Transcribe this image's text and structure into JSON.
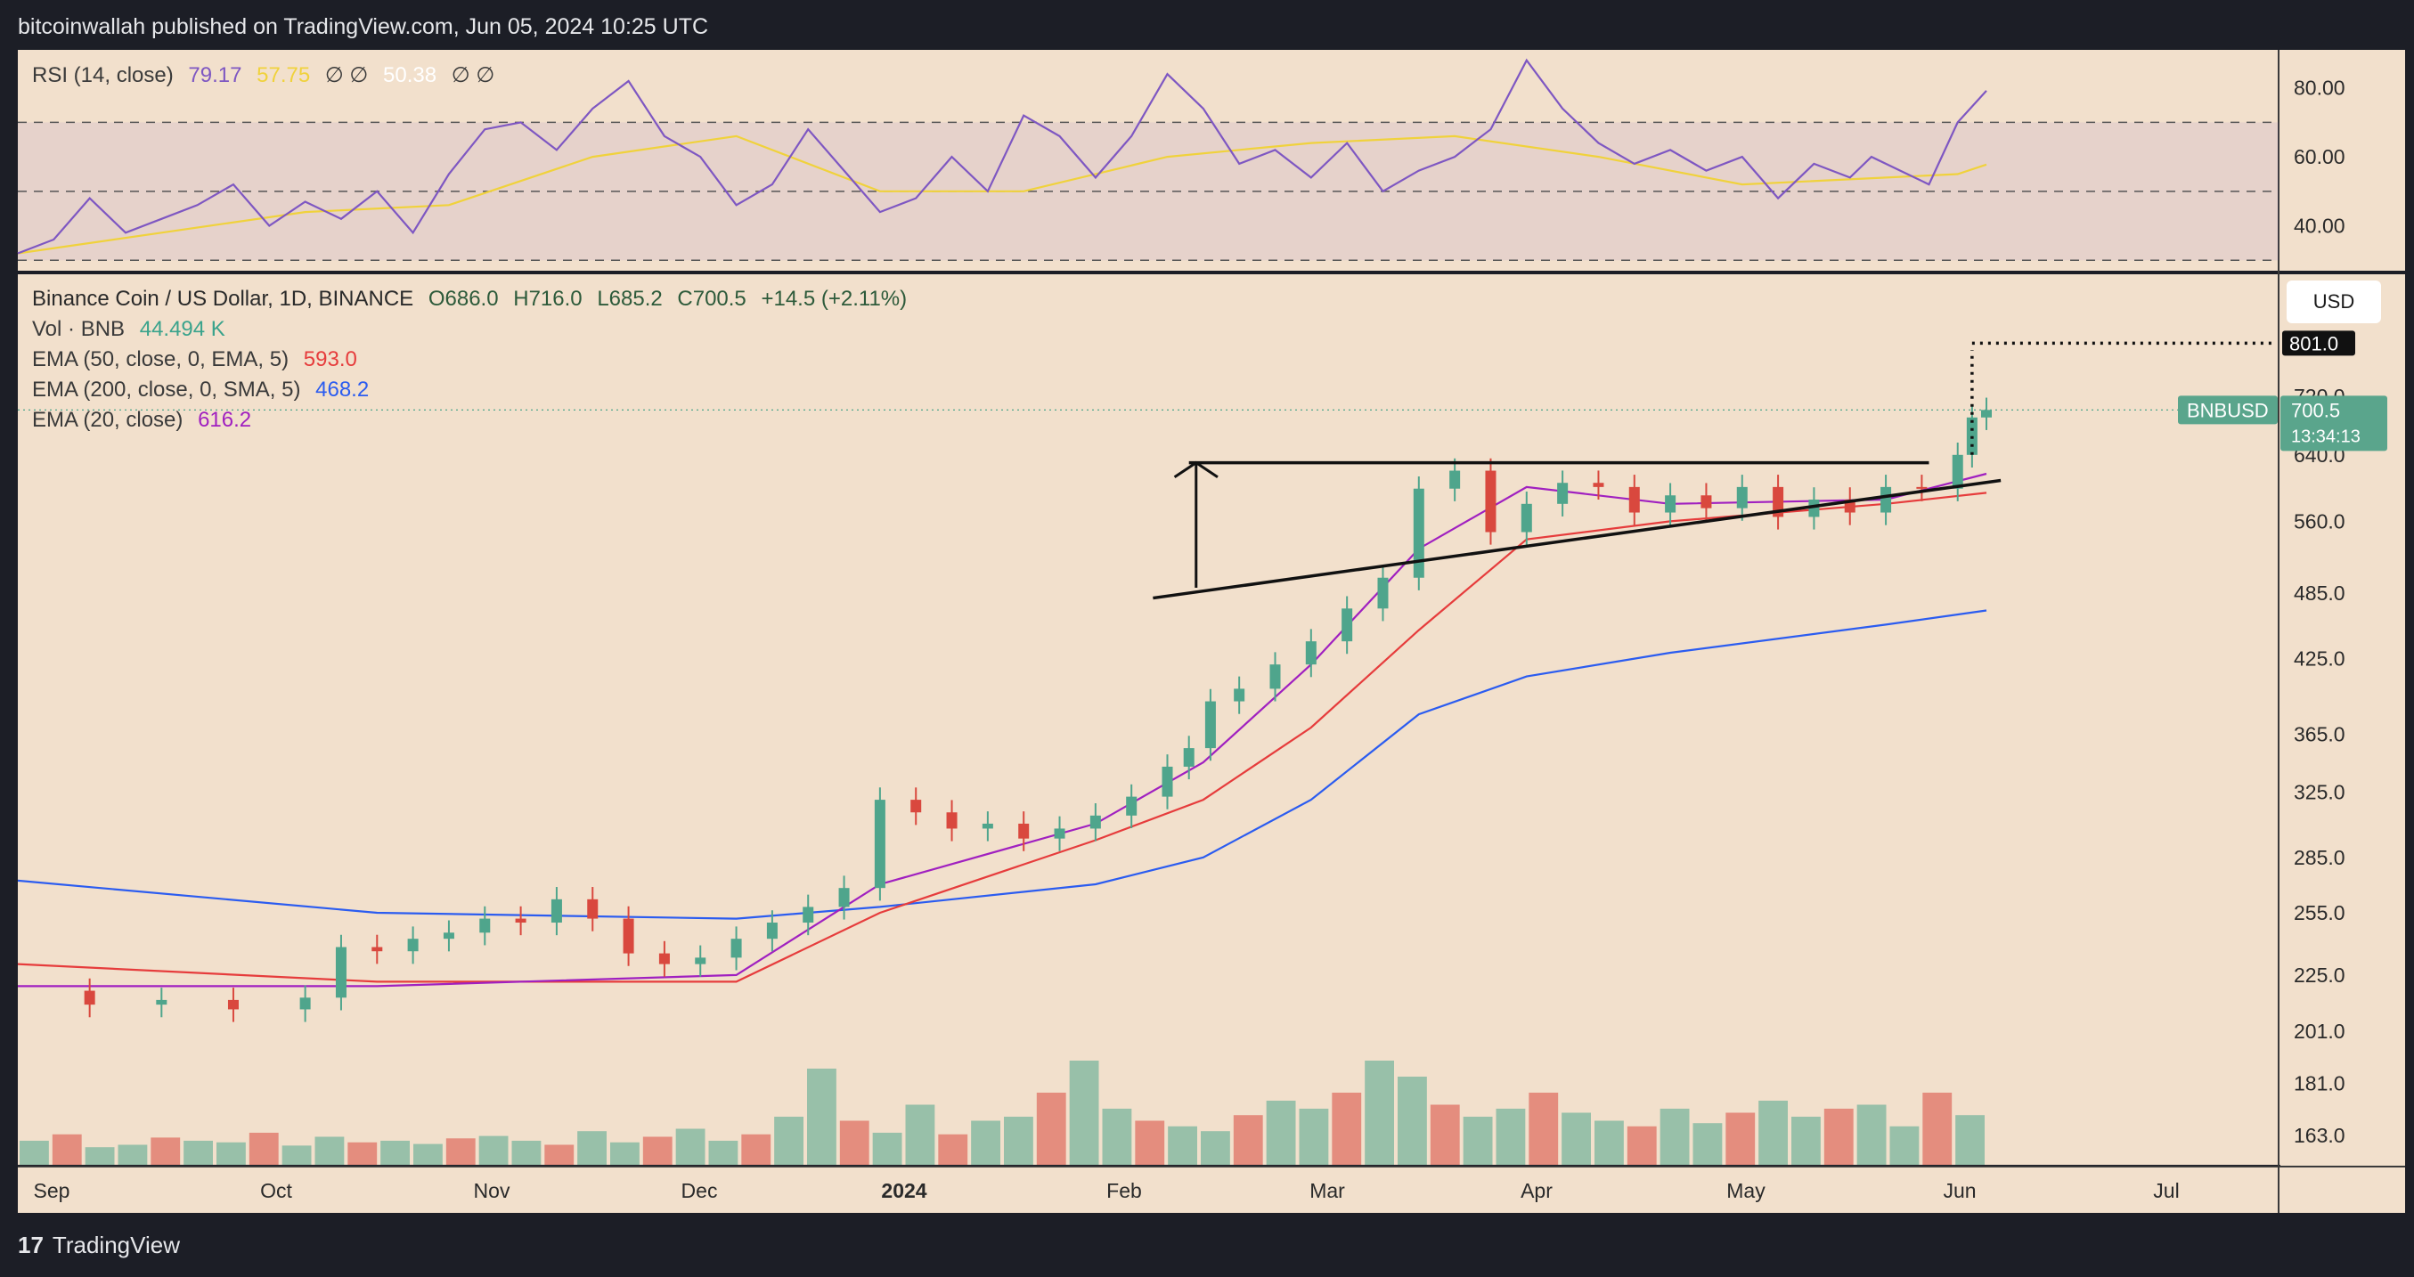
{
  "header": {
    "publisher": "bitcoinwallah published on TradingView.com, Jun 05, 2024 10:25 UTC"
  },
  "footer": {
    "brand": "TradingView",
    "logo": "17"
  },
  "chart_data": [
    {
      "type": "line",
      "title": "RSI (14, close)",
      "legend": {
        "rsi_value": "79.17",
        "ma_value": "57.75",
        "value3": "50.38",
        "symbols": "∅ ∅"
      },
      "y_ticks": [
        "80.00",
        "60.00",
        "40.00"
      ],
      "ylim": [
        28,
        90
      ],
      "bands": [
        30,
        50,
        70
      ],
      "colors": {
        "rsi": "#7e57c2",
        "ma": "#f0d23c",
        "band_fill": "rgba(126,87,194,0.10)",
        "overbought_fill": "rgba(90,180,120,0.35)"
      },
      "series": [
        {
          "x": [
            0,
            5,
            10,
            15,
            20,
            25,
            30,
            35,
            40,
            45,
            50,
            55,
            60,
            65,
            70,
            75,
            80,
            85,
            90,
            95,
            100,
            105,
            110,
            115,
            120,
            125,
            130,
            135,
            140,
            145,
            150,
            155,
            160,
            165,
            170,
            175,
            180,
            185,
            190,
            195,
            200,
            205,
            210,
            215,
            220,
            225,
            230,
            235,
            240,
            245,
            250,
            255,
            258,
            262,
            266,
            270,
            274
          ],
          "values": [
            32,
            36,
            48,
            38,
            42,
            46,
            52,
            40,
            47,
            42,
            50,
            38,
            55,
            68,
            70,
            62,
            74,
            82,
            66,
            60,
            46,
            52,
            68,
            56,
            44,
            48,
            60,
            50,
            72,
            66,
            54,
            66,
            84,
            74,
            58,
            62,
            54,
            64,
            50,
            56,
            60,
            68,
            88,
            74,
            64,
            58,
            62,
            56,
            60,
            48,
            58,
            54,
            60,
            56,
            52,
            70,
            79.17
          ]
        },
        {
          "x": [
            0,
            20,
            40,
            60,
            80,
            100,
            120,
            140,
            160,
            180,
            200,
            220,
            240,
            260,
            270,
            274
          ],
          "values": [
            32,
            38,
            44,
            46,
            60,
            66,
            50,
            50,
            60,
            64,
            66,
            60,
            52,
            54,
            55,
            57.75
          ]
        }
      ]
    },
    {
      "type": "candlestick",
      "title": "Binance Coin / US Dollar, 1D, BINANCE",
      "ohlc": {
        "O": "O686.0",
        "H": "H716.0",
        "L": "L685.2",
        "C": "C700.5",
        "change": "+14.5 (+2.11%)"
      },
      "volume": {
        "label": "Vol · BNB",
        "value": "44.494 K"
      },
      "indicators": [
        {
          "label": "EMA (50, close, 0, EMA, 5)",
          "value": "593.0",
          "color": "#e63c3c"
        },
        {
          "label": "EMA (200, close, 0, SMA, 5)",
          "value": "468.2",
          "color": "#2b5cf0"
        },
        {
          "label": "EMA (20, close)",
          "value": "616.2",
          "color": "#a020c0"
        }
      ],
      "x_ticks": [
        "Sep",
        "Oct",
        "Nov",
        "Dec",
        "2024",
        "Feb",
        "Mar",
        "Apr",
        "May",
        "Jun",
        "Jul"
      ],
      "y_ticks": [
        "720.0",
        "640.0",
        "560.0",
        "485.0",
        "425.0",
        "365.0",
        "325.0",
        "285.0",
        "255.0",
        "225.0",
        "201.0",
        "181.0",
        "163.0"
      ],
      "price_label": {
        "symbol": "BNBUSD",
        "price": "700.5",
        "countdown": "13:34:13"
      },
      "target_label": "801.0",
      "currency_button": "USD",
      "colors": {
        "up": "#4fa58c",
        "down": "#d9483e",
        "bg": "#f2e0cc"
      },
      "close_series": {
        "x": [
          0,
          10,
          20,
          30,
          40,
          45,
          50,
          55,
          60,
          65,
          70,
          75,
          80,
          85,
          90,
          95,
          100,
          105,
          110,
          115,
          120,
          125,
          130,
          135,
          140,
          145,
          150,
          155,
          160,
          163,
          166,
          170,
          175,
          180,
          185,
          190,
          195,
          200,
          205,
          210,
          215,
          220,
          225,
          230,
          235,
          240,
          245,
          250,
          255,
          260,
          265,
          270,
          272,
          274
        ],
        "values": [
          218,
          212,
          214,
          210,
          215,
          238,
          236,
          242,
          245,
          252,
          250,
          262,
          252,
          235,
          230,
          233,
          242,
          250,
          258,
          268,
          320,
          312,
          302,
          305,
          296,
          302,
          310,
          322,
          342,
          355,
          390,
          400,
          420,
          440,
          470,
          500,
          598,
          620,
          548,
          580,
          605,
          600,
          570,
          590,
          575,
          600,
          565,
          585,
          570,
          600,
          598,
          640,
          690,
          700.5
        ]
      },
      "ema20_series": {
        "x": [
          0,
          50,
          100,
          120,
          150,
          165,
          180,
          195,
          210,
          230,
          260,
          274
        ],
        "values": [
          220,
          220,
          225,
          270,
          305,
          345,
          420,
          530,
          600,
          580,
          585,
          616.2
        ]
      },
      "ema50_series": {
        "x": [
          0,
          50,
          100,
          120,
          150,
          165,
          180,
          195,
          210,
          230,
          260,
          274
        ],
        "values": [
          230,
          222,
          222,
          255,
          295,
          320,
          370,
          450,
          540,
          560,
          580,
          593
        ]
      },
      "ema200_series": {
        "x": [
          0,
          50,
          100,
          120,
          150,
          165,
          180,
          195,
          210,
          230,
          260,
          274
        ],
        "values": [
          272,
          255,
          252,
          258,
          270,
          285,
          320,
          380,
          410,
          430,
          455,
          468.2
        ]
      },
      "volume_series": [
        30,
        38,
        22,
        25,
        34,
        30,
        28,
        40,
        24,
        35,
        28,
        30,
        26,
        33,
        36,
        30,
        25,
        42,
        28,
        35,
        45,
        30,
        38,
        60,
        120,
        55,
        40,
        75,
        38,
        55,
        60,
        90,
        130,
        70,
        55,
        48,
        42,
        62,
        80,
        70,
        90,
        130,
        110,
        75,
        60,
        70,
        90,
        65,
        55,
        48,
        70,
        52,
        65,
        80,
        60,
        70,
        75,
        48,
        90,
        62
      ]
    }
  ]
}
